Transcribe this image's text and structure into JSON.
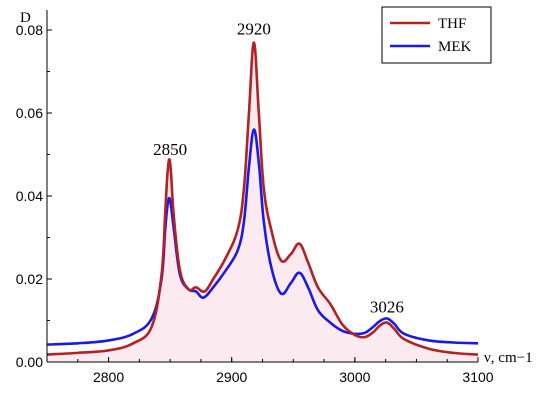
{
  "chart_data": {
    "type": "line",
    "xlabel": "ν, cm−1",
    "ylabel": "D",
    "xlim": [
      2750,
      3100
    ],
    "ylim": [
      0,
      0.08
    ],
    "x_ticks": [
      "2800",
      "2900",
      "3000",
      "3100"
    ],
    "y_ticks": [
      "0.00",
      "0.02",
      "0.04",
      "0.06",
      "0.08"
    ],
    "grid": false,
    "legend_position": "top-right",
    "annotations": [
      {
        "text": "2850",
        "x": 2850,
        "y": 0.048
      },
      {
        "text": "2920",
        "x": 2918,
        "y": 0.077
      },
      {
        "text": "3026",
        "x": 3026,
        "y": 0.01
      }
    ],
    "series": [
      {
        "name": "THF",
        "color": "#b22222",
        "x": [
          2750,
          2775,
          2800,
          2820,
          2835,
          2843,
          2846,
          2848,
          2850,
          2853,
          2858,
          2865,
          2871,
          2878,
          2885,
          2895,
          2905,
          2910,
          2914,
          2918,
          2922,
          2926,
          2932,
          2940,
          2948,
          2955,
          2962,
          2970,
          2980,
          2990,
          3000,
          3008,
          3015,
          3020,
          3026,
          3032,
          3040,
          3060,
          3080,
          3100
        ],
        "y": [
          0.0018,
          0.0022,
          0.0028,
          0.0045,
          0.0085,
          0.021,
          0.036,
          0.046,
          0.048,
          0.035,
          0.022,
          0.0175,
          0.018,
          0.017,
          0.02,
          0.025,
          0.032,
          0.042,
          0.06,
          0.077,
          0.06,
          0.042,
          0.032,
          0.0245,
          0.026,
          0.0285,
          0.024,
          0.018,
          0.014,
          0.009,
          0.0065,
          0.006,
          0.0072,
          0.0087,
          0.0095,
          0.008,
          0.0055,
          0.0032,
          0.0022,
          0.0018
        ]
      },
      {
        "name": "MEK",
        "color": "#1a1ae6",
        "x": [
          2750,
          2775,
          2800,
          2820,
          2835,
          2843,
          2846,
          2848,
          2850,
          2853,
          2858,
          2865,
          2871,
          2877,
          2885,
          2895,
          2905,
          2910,
          2914,
          2918,
          2922,
          2926,
          2932,
          2940,
          2948,
          2955,
          2962,
          2970,
          2980,
          2990,
          3000,
          3008,
          3015,
          3020,
          3026,
          3032,
          3040,
          3060,
          3080,
          3100
        ],
        "y": [
          0.0042,
          0.0045,
          0.0052,
          0.0068,
          0.0105,
          0.02,
          0.032,
          0.038,
          0.039,
          0.032,
          0.021,
          0.0175,
          0.017,
          0.0155,
          0.018,
          0.022,
          0.027,
          0.034,
          0.047,
          0.056,
          0.048,
          0.034,
          0.023,
          0.0165,
          0.019,
          0.0215,
          0.018,
          0.0125,
          0.0095,
          0.0075,
          0.0068,
          0.007,
          0.0085,
          0.0098,
          0.0105,
          0.0092,
          0.0068,
          0.0052,
          0.0047,
          0.0045
        ]
      }
    ]
  }
}
